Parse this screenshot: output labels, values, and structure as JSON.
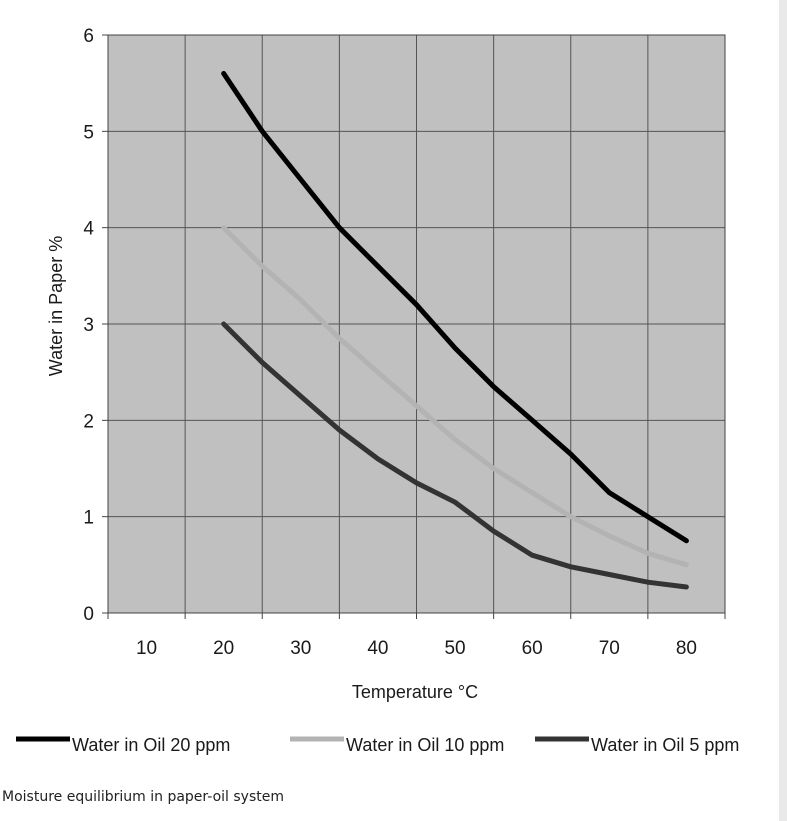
{
  "chart_data": {
    "type": "line",
    "title": "",
    "xlabel": "Temperature °C",
    "ylabel": "Water in Paper %",
    "x_ticks": [
      "10",
      "20",
      "30",
      "40",
      "50",
      "60",
      "70",
      "80"
    ],
    "y_ticks": [
      "0",
      "1",
      "2",
      "3",
      "4",
      "5",
      "6"
    ],
    "xlim": [
      5,
      85
    ],
    "ylim": [
      0,
      6
    ],
    "grid": true,
    "plot_background": "#c0c0c0",
    "legend_position": "bottom",
    "series": [
      {
        "name": "Water in Oil 20 ppm",
        "color": "#000000",
        "x": [
          20,
          25,
          30,
          35,
          40,
          45,
          50,
          55,
          60,
          65,
          70,
          75,
          80
        ],
        "y": [
          5.6,
          5.0,
          4.5,
          4.0,
          3.6,
          3.2,
          2.75,
          2.35,
          2.0,
          1.65,
          1.25,
          1.0,
          0.75
        ]
      },
      {
        "name": "Water in Oil 10 ppm",
        "color": "#b3b3b3",
        "x": [
          20,
          25,
          30,
          35,
          40,
          45,
          50,
          55,
          60,
          65,
          70,
          75,
          80
        ],
        "y": [
          4.0,
          3.6,
          3.25,
          2.85,
          2.5,
          2.15,
          1.8,
          1.5,
          1.25,
          1.0,
          0.8,
          0.62,
          0.5
        ]
      },
      {
        "name": "Water in Oil 5 ppm",
        "color": "#333333",
        "x": [
          20,
          25,
          30,
          35,
          40,
          45,
          50,
          55,
          60,
          65,
          70,
          75,
          80
        ],
        "y": [
          3.0,
          2.6,
          2.25,
          1.9,
          1.6,
          1.35,
          1.15,
          0.85,
          0.6,
          0.48,
          0.4,
          0.32,
          0.27
        ]
      }
    ]
  },
  "caption": "Moisture equilibrium in paper-oil system"
}
